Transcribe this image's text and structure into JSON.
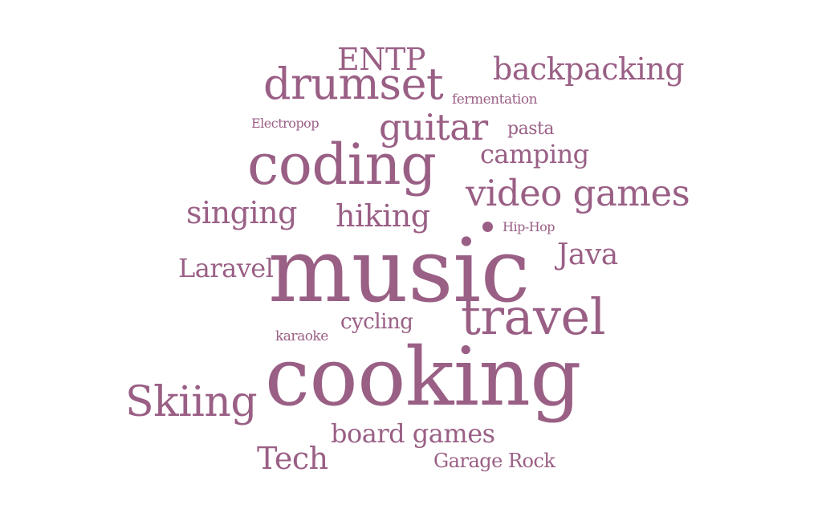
{
  "word_cloud": {
    "color": "#9a5f85",
    "words": [
      {
        "text": "music",
        "weight": 110
      },
      {
        "text": "cooking",
        "weight": 100
      },
      {
        "text": "coding",
        "weight": 70
      },
      {
        "text": "travel",
        "weight": 62
      },
      {
        "text": "drumset",
        "weight": 54
      },
      {
        "text": "Skiing",
        "weight": 52
      },
      {
        "text": "guitar",
        "weight": 45
      },
      {
        "text": "video games",
        "weight": 45
      },
      {
        "text": "ENTP",
        "weight": 38
      },
      {
        "text": "backpacking",
        "weight": 38
      },
      {
        "text": "Tech",
        "weight": 38
      },
      {
        "text": "singing",
        "weight": 38
      },
      {
        "text": "hiking",
        "weight": 38
      },
      {
        "text": "Java",
        "weight": 36
      },
      {
        "text": "Laravel",
        "weight": 32
      },
      {
        "text": "camping",
        "weight": 32
      },
      {
        "text": "board games",
        "weight": 32
      },
      {
        "text": "Garage Rock",
        "weight": 24
      },
      {
        "text": "cycling",
        "weight": 26
      },
      {
        "text": "pasta",
        "weight": 22
      },
      {
        "text": "fermentation",
        "weight": 17
      },
      {
        "text": "Electropop",
        "weight": 16
      },
      {
        "text": "Hip-Hop",
        "weight": 16
      },
      {
        "text": "karaoke",
        "weight": 17
      }
    ]
  }
}
